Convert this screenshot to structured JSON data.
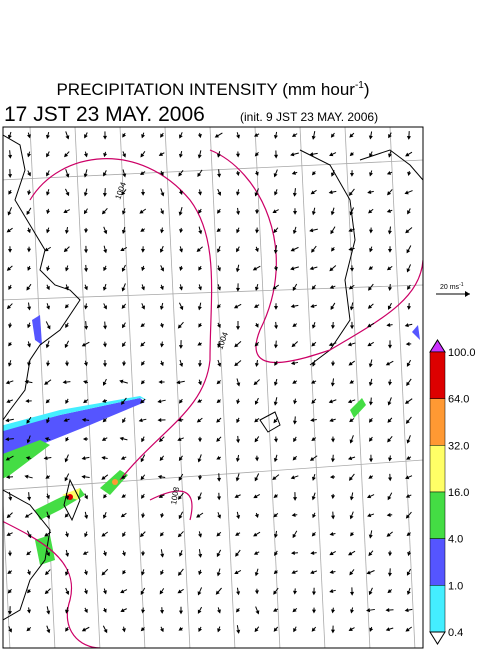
{
  "header": {
    "title": "PRECIPITATION INTENSITY (mm hour",
    "title_sup": "-1",
    "title_end": ")",
    "valid_time": "17 JST 23 MAY. 2006",
    "init_time": "(init. 9 JST 23 MAY. 2006)"
  },
  "reference_vector": {
    "label": "20 ms",
    "label_sup": "-1"
  },
  "contour_labels": [
    "1004",
    "1004",
    "1008"
  ],
  "colorbar": {
    "levels": [
      {
        "label": "100.0",
        "color": "#dd0000"
      },
      {
        "label": "64.0",
        "color": "#ff9933"
      },
      {
        "label": "32.0",
        "color": "#ffff66"
      },
      {
        "label": "16.0",
        "color": "#44dd44"
      },
      {
        "label": "4.0",
        "color": "#5555ff"
      },
      {
        "label": "1.0",
        "color": "#44eeff"
      },
      {
        "label": "0.4",
        "color": "#ffffff"
      }
    ],
    "over_color": "#cc33ff"
  }
}
